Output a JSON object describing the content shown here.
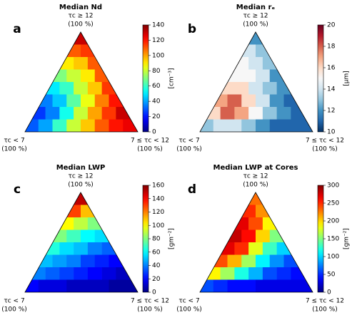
{
  "chart_data": [
    {
      "type": "ternary_heatmap",
      "title": "Median Nd",
      "panel_label": "a",
      "corner_labels": {
        "top": [
          "τc ≥ 12",
          "(100 %)"
        ],
        "left": [
          "τc < 7",
          "(100 %)"
        ],
        "right": [
          "7 ≤ τc < 12",
          "(100 %)"
        ]
      },
      "rows": [
        [
          130
        ],
        [
          110,
          115
        ],
        [
          90,
          95,
          110
        ],
        [
          70,
          80,
          90,
          110
        ],
        [
          50,
          60,
          80,
          95,
          115
        ],
        [
          35,
          45,
          65,
          85,
          105,
          120
        ],
        [
          25,
          35,
          55,
          80,
          100,
          115,
          130
        ],
        [
          30,
          40,
          60,
          80,
          95,
          110,
          120,
          125
        ]
      ],
      "colorbar": {
        "label": "[cm⁻³]",
        "cmap": "jet",
        "lim": [
          0,
          140
        ],
        "ticks": [
          0,
          20,
          40,
          60,
          80,
          100,
          120,
          140
        ]
      }
    },
    {
      "type": "ternary_heatmap",
      "title": "Median rₑ",
      "panel_label": "b",
      "corner_labels": {
        "top": [
          "τc ≥ 12",
          "(100 %)"
        ],
        "left": [
          "τc < 7",
          "(100 %)"
        ],
        "right": [
          "7 ≤ τc < 12",
          "(100 %)"
        ]
      },
      "rows": [
        [
          12
        ],
        [
          14,
          13
        ],
        [
          15,
          14,
          13
        ],
        [
          15,
          15,
          14,
          12
        ],
        [
          16,
          16,
          14,
          13,
          12
        ],
        [
          17,
          18,
          16,
          14,
          12,
          11
        ],
        [
          16,
          18,
          17,
          15,
          13,
          12,
          11
        ],
        [
          13,
          14,
          14,
          13,
          12,
          11,
          11,
          11
        ]
      ],
      "colorbar": {
        "label": "[μm]",
        "cmap": "RdBu_r",
        "lim": [
          10,
          20
        ],
        "ticks": [
          10,
          12,
          14,
          16,
          18,
          20
        ]
      }
    },
    {
      "type": "ternary_heatmap",
      "title": "Median LWP",
      "panel_label": "c",
      "corner_labels": {
        "top": [
          "τc ≥ 12",
          "(100 %)"
        ],
        "left": [
          "τc < 7",
          "(100 %)"
        ],
        "right": [
          "7 ≤ τc < 12",
          "(100 %)"
        ]
      },
      "rows": [
        [
          150
        ],
        [
          130,
          110
        ],
        [
          100,
          90,
          80
        ],
        [
          80,
          70,
          60,
          55
        ],
        [
          65,
          55,
          50,
          40,
          35
        ],
        [
          50,
          45,
          40,
          30,
          25,
          20
        ],
        [
          40,
          35,
          30,
          25,
          20,
          15,
          10
        ],
        [
          20,
          15,
          15,
          10,
          10,
          10,
          5,
          5
        ]
      ],
      "colorbar": {
        "label": "[gm⁻²]",
        "cmap": "jet",
        "lim": [
          0,
          160
        ],
        "ticks": [
          0,
          20,
          40,
          60,
          80,
          100,
          120,
          140,
          160
        ]
      }
    },
    {
      "type": "ternary_heatmap",
      "title": "Median LWP at Cores",
      "panel_label": "d",
      "corner_labels": {
        "top": [
          "τc ≥ 12",
          "(100 %)"
        ],
        "left": [
          "τc < 7",
          "(100 %)"
        ],
        "right": [
          "7 ≤ τc < 12",
          "(100 %)"
        ]
      },
      "rows": [
        [
          230
        ],
        [
          250,
          220
        ],
        [
          270,
          240,
          190
        ],
        [
          280,
          260,
          200,
          150
        ],
        [
          270,
          250,
          180,
          130,
          100
        ],
        [
          240,
          210,
          160,
          110,
          80,
          60
        ],
        [
          190,
          160,
          120,
          90,
          60,
          50,
          40
        ],
        [
          60,
          50,
          40,
          40,
          30,
          30,
          30,
          30
        ]
      ],
      "colorbar": {
        "label": "[gm⁻²]",
        "cmap": "jet",
        "lim": [
          0,
          300
        ],
        "ticks": [
          0,
          50,
          100,
          150,
          200,
          250,
          300
        ]
      }
    }
  ]
}
